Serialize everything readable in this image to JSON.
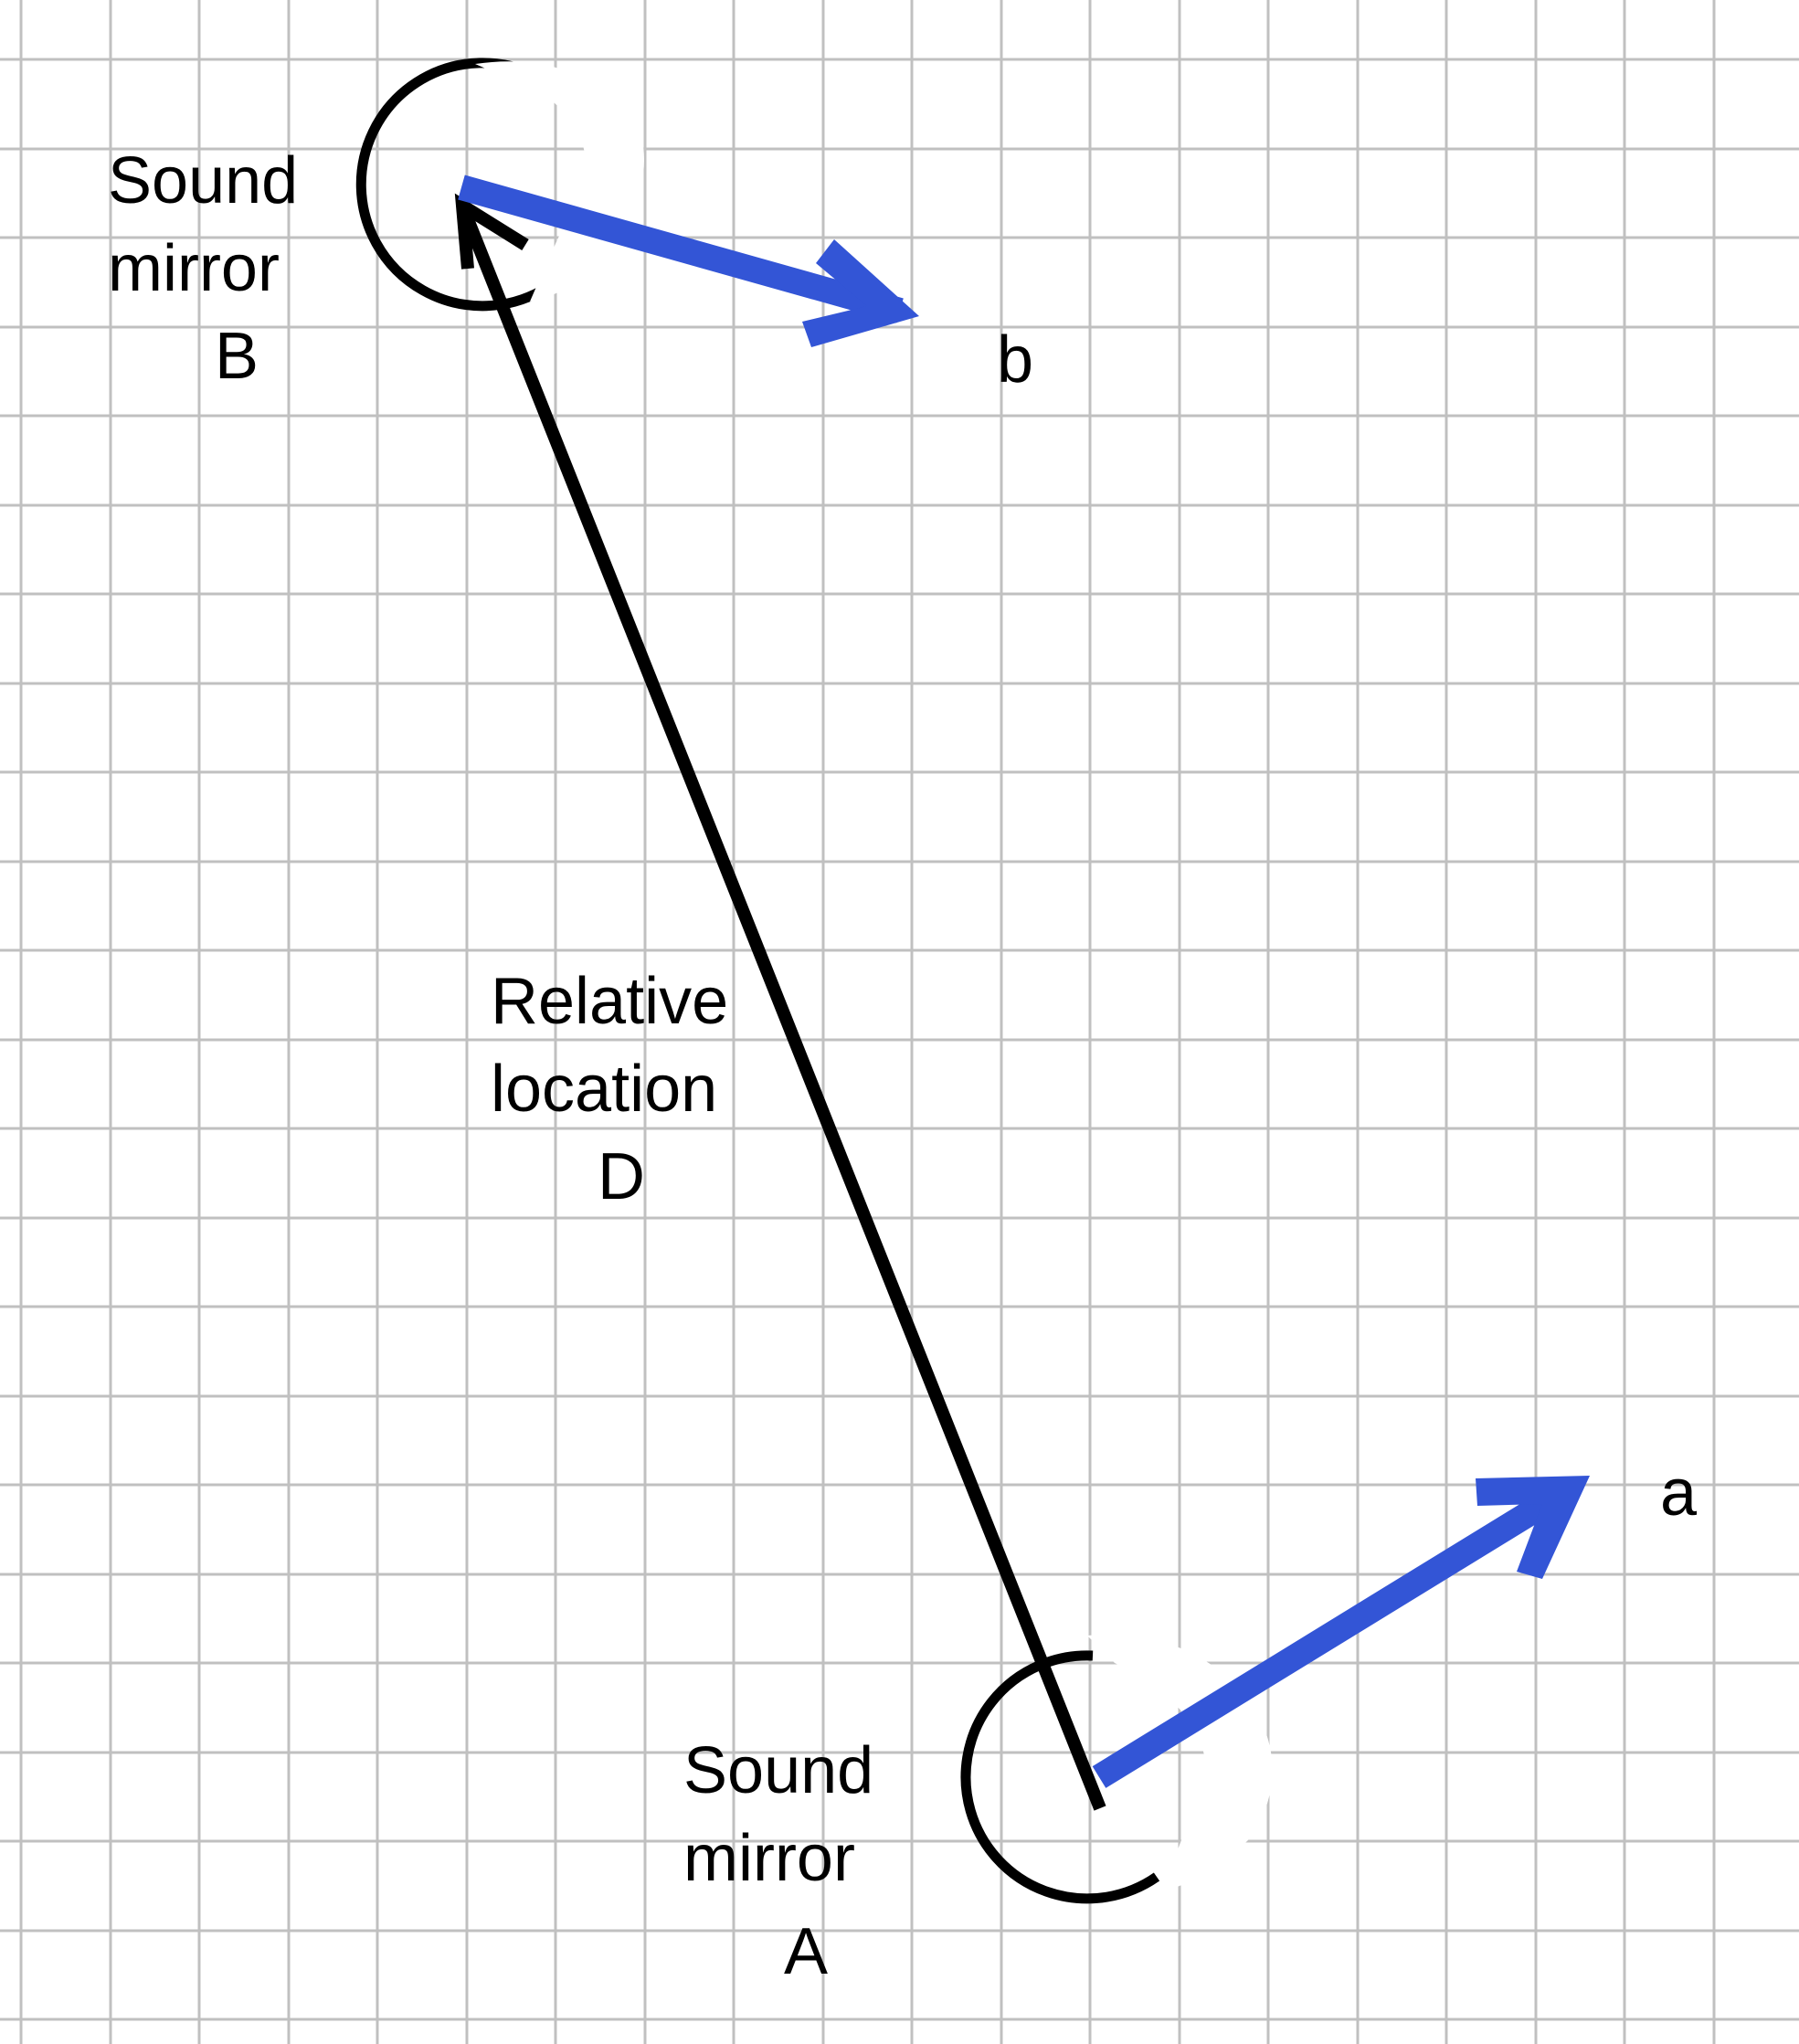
{
  "grid": {
    "line_color": "#c0c0c0",
    "background": "#ffffff"
  },
  "colors": {
    "black": "#000000",
    "blue": "#3355d6"
  },
  "labels": {
    "mirror_b": [
      "Sound",
      "mirror",
      "B"
    ],
    "mirror_a": [
      "Sound",
      "mirror",
      "A"
    ],
    "relative": [
      "Relative",
      "location",
      "D"
    ],
    "vector_b": "b",
    "vector_a": "a"
  }
}
